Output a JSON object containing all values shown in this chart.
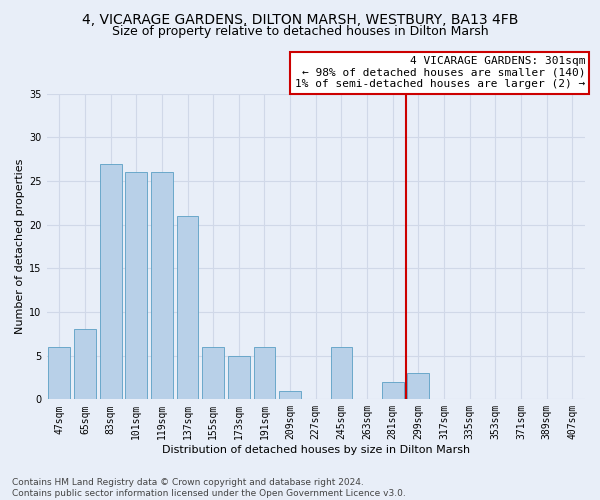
{
  "title": "4, VICARAGE GARDENS, DILTON MARSH, WESTBURY, BA13 4FB",
  "subtitle": "Size of property relative to detached houses in Dilton Marsh",
  "xlabel": "Distribution of detached houses by size in Dilton Marsh",
  "ylabel": "Number of detached properties",
  "categories": [
    "47sqm",
    "65sqm",
    "83sqm",
    "101sqm",
    "119sqm",
    "137sqm",
    "155sqm",
    "173sqm",
    "191sqm",
    "209sqm",
    "227sqm",
    "245sqm",
    "263sqm",
    "281sqm",
    "299sqm",
    "317sqm",
    "335sqm",
    "353sqm",
    "371sqm",
    "389sqm",
    "407sqm"
  ],
  "values": [
    6,
    8,
    27,
    26,
    26,
    21,
    6,
    5,
    6,
    1,
    0,
    6,
    0,
    2,
    3,
    0,
    0,
    0,
    0,
    0,
    0
  ],
  "bar_color": "#b8d0e8",
  "bar_edge_color": "#5a9fc5",
  "highlight_color": "#cc0000",
  "property_bin_index": 14,
  "ylim": [
    0,
    35
  ],
  "yticks": [
    0,
    5,
    10,
    15,
    20,
    25,
    30,
    35
  ],
  "annotation_title": "4 VICARAGE GARDENS: 301sqm",
  "annotation_line1": "← 98% of detached houses are smaller (140)",
  "annotation_line2": "1% of semi-detached houses are larger (2) →",
  "footer_line1": "Contains HM Land Registry data © Crown copyright and database right 2024.",
  "footer_line2": "Contains public sector information licensed under the Open Government Licence v3.0.",
  "bg_color": "#e8eef8",
  "grid_color": "#d0d8e8",
  "title_fontsize": 10,
  "subtitle_fontsize": 9,
  "axis_label_fontsize": 8,
  "tick_fontsize": 7,
  "footer_fontsize": 6.5,
  "annotation_fontsize": 8
}
